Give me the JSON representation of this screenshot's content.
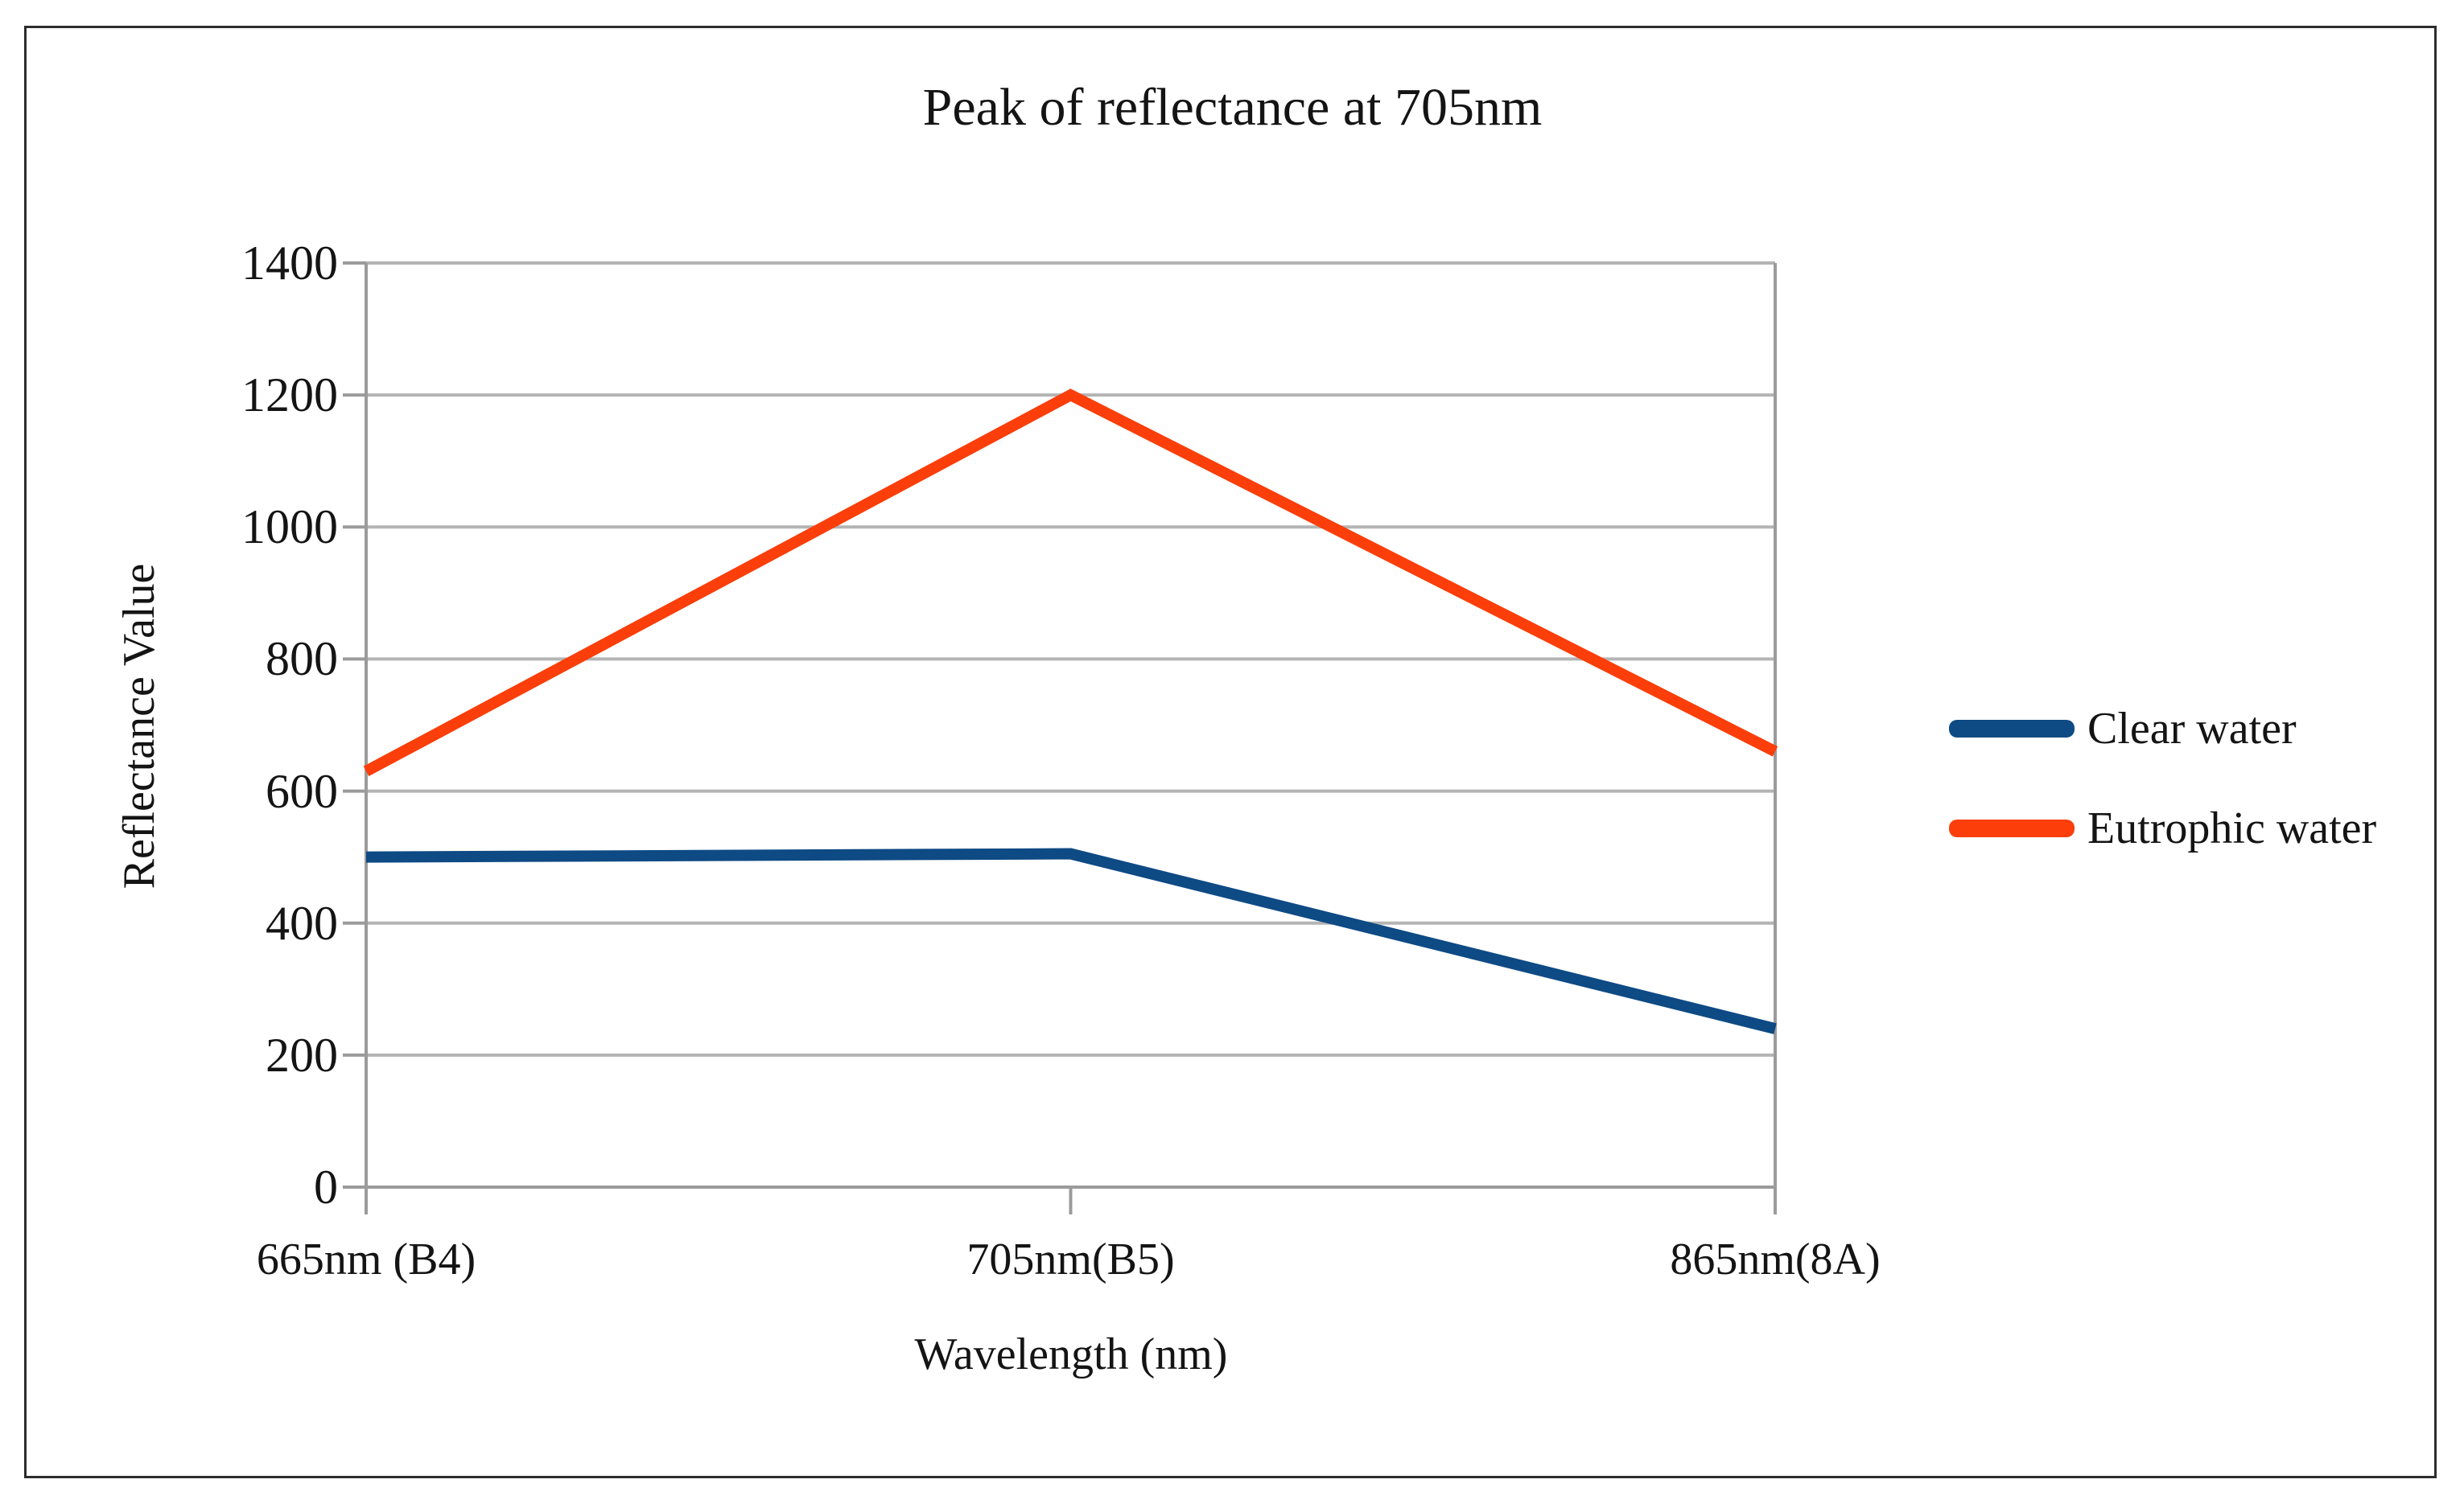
{
  "frame": {
    "background": "#ffffff",
    "border_color": "#2d2d2d"
  },
  "chart_data": {
    "type": "line",
    "title": "Peak of reflectance at 705nm",
    "xlabel": "Wavelength (nm)",
    "ylabel": "Reflectance Value",
    "categories": [
      "665nm (B4)",
      "705nm(B5)",
      "865nm(8A)"
    ],
    "series": [
      {
        "name": "Clear water",
        "color": "#0E4A84",
        "values": [
          500,
          505,
          240
        ]
      },
      {
        "name": "Eutrophic water",
        "color": "#FB3E0A",
        "values": [
          630,
          1200,
          660
        ]
      }
    ],
    "ylim": [
      0,
      1400
    ],
    "y_ticks": [
      0,
      200,
      400,
      600,
      800,
      1000,
      1200,
      1400
    ],
    "grid": "horizontal",
    "legend_position": "right",
    "colors": {
      "grid": "#b4b4b4",
      "axis": "#9b9b9b",
      "text": "#141414"
    }
  }
}
